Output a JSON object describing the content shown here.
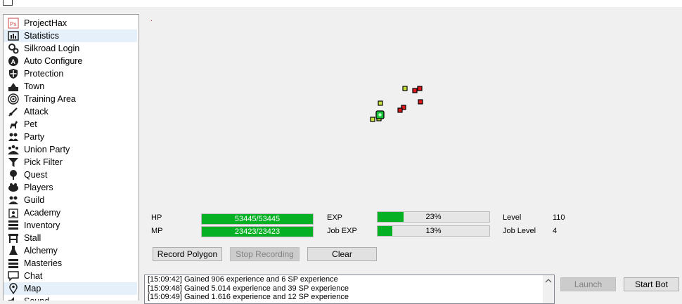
{
  "sidebar": {
    "items": [
      {
        "label": "ProjectHax",
        "icon": "projecthax-icon",
        "selected": false
      },
      {
        "label": "Statistics",
        "icon": "statistics-icon",
        "selected": true
      },
      {
        "label": "Silkroad Login",
        "icon": "gears-icon",
        "selected": false
      },
      {
        "label": "Auto Configure",
        "icon": "auto-configure-icon",
        "selected": false
      },
      {
        "label": "Protection",
        "icon": "shield-icon",
        "selected": false
      },
      {
        "label": "Town",
        "icon": "town-icon",
        "selected": false
      },
      {
        "label": "Training Area",
        "icon": "target-icon",
        "selected": false
      },
      {
        "label": "Attack",
        "icon": "sword-icon",
        "selected": false
      },
      {
        "label": "Pet",
        "icon": "pet-icon",
        "selected": false
      },
      {
        "label": "Party",
        "icon": "party-icon",
        "selected": false
      },
      {
        "label": "Union Party",
        "icon": "union-party-icon",
        "selected": false
      },
      {
        "label": "Pick Filter",
        "icon": "funnel-icon",
        "selected": false
      },
      {
        "label": "Quest",
        "icon": "quest-icon",
        "selected": false
      },
      {
        "label": "Players",
        "icon": "players-icon",
        "selected": false
      },
      {
        "label": "Guild",
        "icon": "guild-icon",
        "selected": false
      },
      {
        "label": "Academy",
        "icon": "academy-icon",
        "selected": false
      },
      {
        "label": "Inventory",
        "icon": "inventory-icon",
        "selected": false
      },
      {
        "label": "Stall",
        "icon": "stall-icon",
        "selected": false
      },
      {
        "label": "Alchemy",
        "icon": "alchemy-icon",
        "selected": false
      },
      {
        "label": "Masteries",
        "icon": "masteries-icon",
        "selected": false
      },
      {
        "label": "Chat",
        "icon": "chat-icon",
        "selected": false
      },
      {
        "label": "Map",
        "icon": "map-pin-icon",
        "selected": true
      },
      {
        "label": "Sound",
        "icon": "sound-icon",
        "selected": false
      }
    ]
  },
  "stats": {
    "hp_label": "HP",
    "hp_text": "53445/53445",
    "hp_fraction": 1.0,
    "mp_label": "MP",
    "mp_text": "23423/23423",
    "mp_fraction": 1.0,
    "exp_label": "EXP",
    "exp_text": "23%",
    "exp_fraction": 0.23,
    "jobexp_label": "Job EXP",
    "jobexp_text": "13%",
    "jobexp_fraction": 0.13,
    "level_label": "Level",
    "level_value": "110",
    "joblevel_label": "Job Level",
    "joblevel_value": "4"
  },
  "buttons": {
    "record_polygon": "Record Polygon",
    "stop_recording": "Stop Recording",
    "clear": "Clear",
    "launch": "Launch",
    "start_bot": "Start Bot"
  },
  "log": {
    "lines": [
      "[15:09:42] Gained 906 experience and 6 SP experience",
      "[15:09:48] Gained 5.014 experience and 39 SP experience",
      "[15:09:49] Gained 1.616 experience and 12 SP experience"
    ]
  },
  "colors": {
    "bar_fill": "#06b025",
    "selection": "#e5f0fb",
    "monster": "#e0191d",
    "player": "#c8e03a",
    "self": "#17c23a"
  }
}
